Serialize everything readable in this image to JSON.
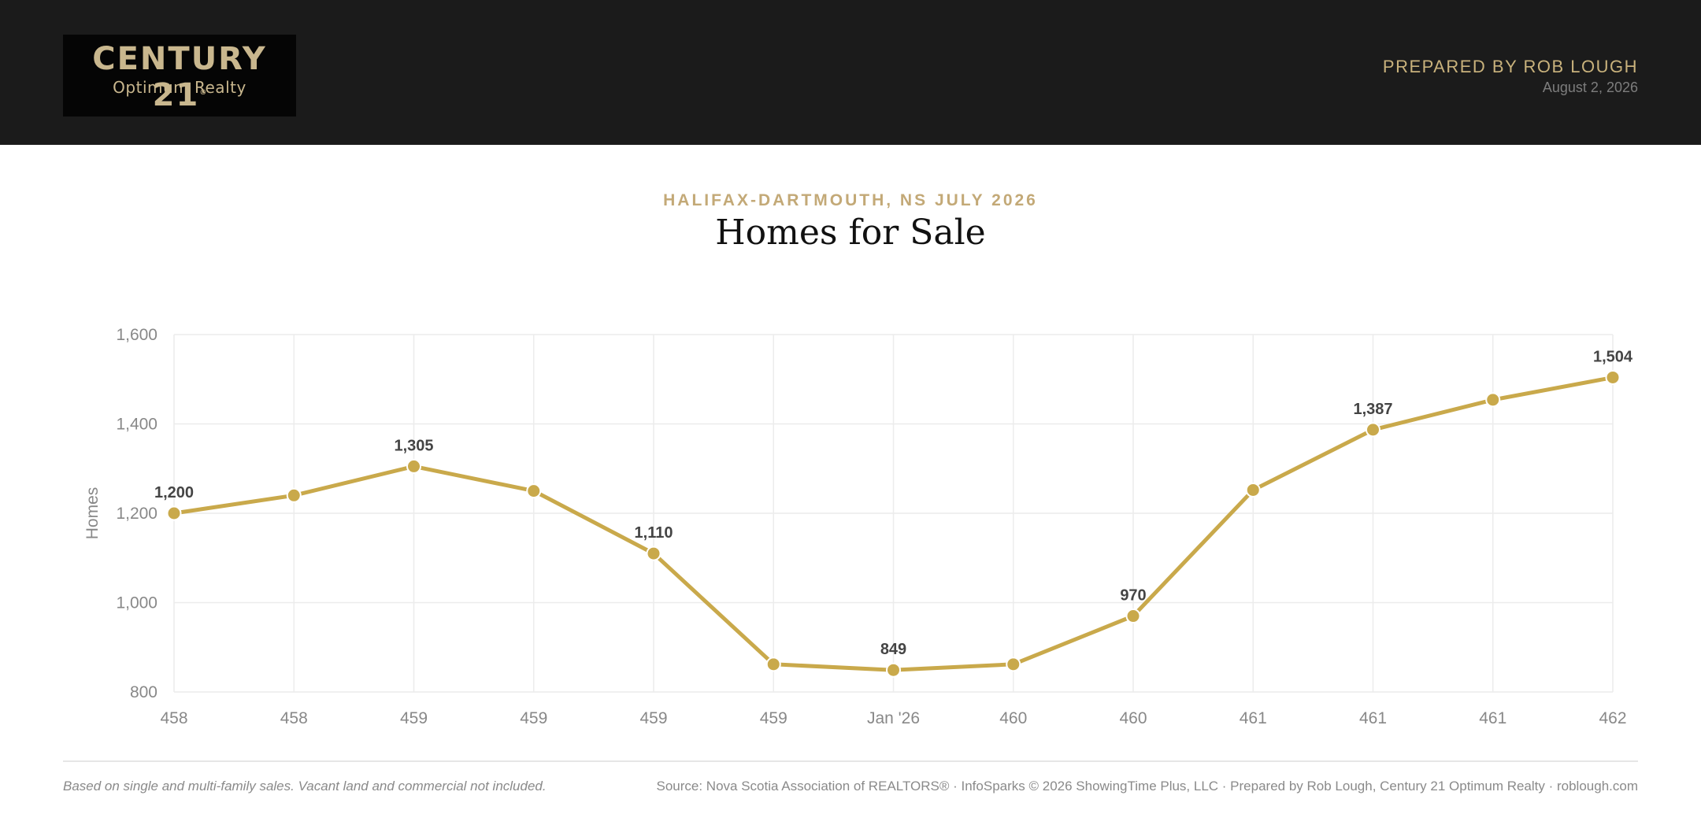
{
  "header": {
    "logo_line1": "CENTURY 21",
    "logo_reg": "®",
    "logo_line2": "Optimum Realty",
    "prepared_by": "PREPARED BY ROB LOUGH",
    "date": "August 2, 2026"
  },
  "heading": {
    "eyebrow": "HALIFAX-DARTMOUTH, NS JULY 2026",
    "title": "Homes for Sale"
  },
  "colors": {
    "accent": "#c9a94b",
    "header_bg": "#1b1b1b",
    "grid": "#ececec",
    "axis_text": "#888888",
    "label_text": "#444444"
  },
  "chart_data": {
    "type": "line",
    "ylabel": "Homes",
    "ylim": [
      800,
      1600
    ],
    "yticks": [
      800,
      1000,
      1200,
      1400,
      1600
    ],
    "ytick_labels": [
      "800",
      "1,000",
      "1,200",
      "1,400",
      "1,600"
    ],
    "x_tick_labels": [
      "458",
      "458",
      "459",
      "459",
      "459",
      "459",
      "Jan '26",
      "460",
      "460",
      "461",
      "461",
      "461",
      "462"
    ],
    "grid": true,
    "series": [
      {
        "values": [
          1200,
          1240,
          1305,
          1250,
          1110,
          862,
          849,
          862,
          970,
          1252,
          1387,
          1454,
          1504
        ],
        "data_labels": [
          "1,200",
          "",
          "1,305",
          "",
          "1,110",
          "",
          "849",
          "",
          "970",
          "",
          "1,387",
          "",
          "1,504"
        ]
      }
    ]
  },
  "footer": {
    "note": "Based on single and multi-family sales. Vacant land and commercial not included.",
    "source": "Source: Nova Scotia Association of REALTORS® · InfoSparks © 2026 ShowingTime Plus, LLC · Prepared by Rob Lough, Century 21 Optimum Realty · roblough.com"
  }
}
